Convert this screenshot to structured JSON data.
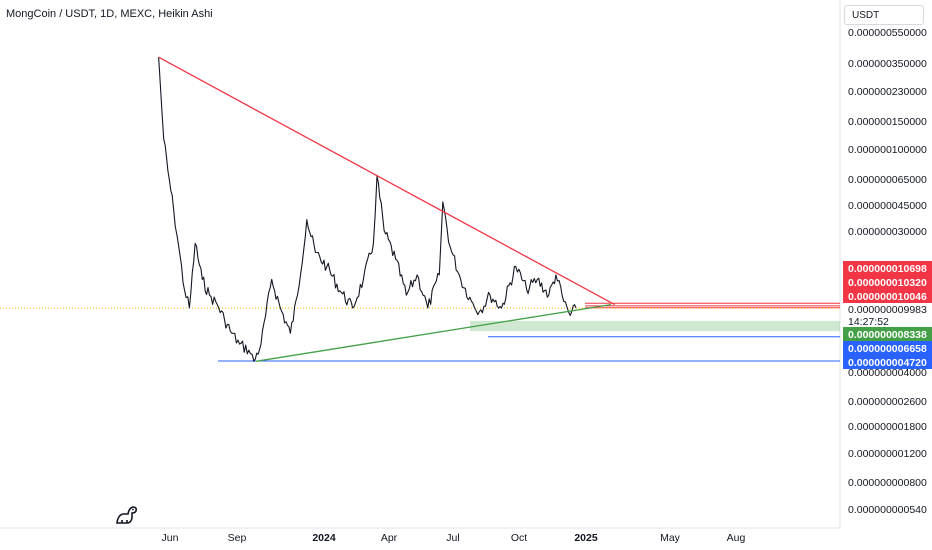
{
  "header": {
    "title": "MongCoin / USDT, 1D, MEXC, Heikin Ashi"
  },
  "price_scale": {
    "unit": "USDT",
    "labels": [
      "0.000000550000",
      "0.000000350000",
      "0.000000230000",
      "0.000000150000",
      "0.000000100000",
      "0.000000065000",
      "0.000000045000",
      "0.000000030000",
      "0.000000004000",
      "0.000000002600",
      "0.000000001800",
      "0.000000001200",
      "0.000000000800",
      "0.000000000540"
    ],
    "badges": [
      {
        "label": "0.000000010698",
        "color": "#f23645"
      },
      {
        "label": "0.000000010320",
        "color": "#f23645"
      },
      {
        "label": "0.000000010046",
        "color": "#f23645"
      },
      {
        "label": "0.000000008338",
        "color": "#43a047"
      },
      {
        "label": "0.000000006658",
        "color": "#2962ff"
      },
      {
        "label": "0.000000004720",
        "color": "#2962ff"
      }
    ],
    "last_price": "0.000000009983",
    "countdown": "14:27:52"
  },
  "time_scale": {
    "labels": [
      {
        "text": "Jun",
        "bold": false
      },
      {
        "text": "Sep",
        "bold": false
      },
      {
        "text": "2024",
        "bold": true
      },
      {
        "text": "Apr",
        "bold": false
      },
      {
        "text": "Jul",
        "bold": false
      },
      {
        "text": "Oct",
        "bold": false
      },
      {
        "text": "2025",
        "bold": true
      },
      {
        "text": "May",
        "bold": false
      },
      {
        "text": "Aug",
        "bold": false
      }
    ]
  },
  "chart_data": {
    "type": "line",
    "title": "MongCoin / USDT, 1D, MEXC, Heikin Ashi",
    "scale": "log",
    "series": [
      {
        "values": [
          [
            "2023-05-15",
            3.5e-07
          ],
          [
            "2023-05-17",
            2.5e-07
          ],
          [
            "2023-05-22",
            1.1e-07
          ],
          [
            "2023-05-28",
            7e-08
          ],
          [
            "2023-06-05",
            4e-08
          ],
          [
            "2023-06-12",
            2.4e-08
          ],
          [
            "2023-06-20",
            1.3e-08
          ],
          [
            "2023-06-27",
            1e-08
          ],
          [
            "2023-07-05",
            2.5e-08
          ],
          [
            "2023-07-15",
            1.5e-08
          ],
          [
            "2023-07-25",
            1.2e-08
          ],
          [
            "2023-08-05",
            1.05e-08
          ],
          [
            "2023-08-15",
            8.5e-09
          ],
          [
            "2023-08-25",
            7e-09
          ],
          [
            "2023-09-05",
            6e-09
          ],
          [
            "2023-09-18",
            5.5e-09
          ],
          [
            "2023-09-25",
            4.7e-09
          ],
          [
            "2023-10-05",
            6e-09
          ],
          [
            "2023-10-20",
            1.5e-08
          ],
          [
            "2023-11-01",
            1e-08
          ],
          [
            "2023-11-15",
            7e-09
          ],
          [
            "2023-11-25",
            1.2e-08
          ],
          [
            "2023-12-08",
            3.5e-08
          ],
          [
            "2023-12-20",
            2.2e-08
          ],
          [
            "2024-01-05",
            1.8e-08
          ],
          [
            "2024-01-25",
            1.25e-08
          ],
          [
            "2024-02-10",
            1e-08
          ],
          [
            "2024-02-25",
            1.5e-08
          ],
          [
            "2024-03-10",
            2.5e-08
          ],
          [
            "2024-03-15",
            6.5e-08
          ],
          [
            "2024-03-25",
            3e-08
          ],
          [
            "2024-04-10",
            2e-08
          ],
          [
            "2024-04-25",
            1.2e-08
          ],
          [
            "2024-05-10",
            1.6e-08
          ],
          [
            "2024-05-25",
            1e-08
          ],
          [
            "2024-06-10",
            1.6e-08
          ],
          [
            "2024-06-15",
            4.5e-08
          ],
          [
            "2024-06-25",
            2.4e-08
          ],
          [
            "2024-07-10",
            1.5e-08
          ],
          [
            "2024-07-25",
            1.1e-08
          ],
          [
            "2024-08-05",
            9.5e-09
          ],
          [
            "2024-08-20",
            1.2e-08
          ],
          [
            "2024-09-05",
            1e-08
          ],
          [
            "2024-09-25",
            1.8e-08
          ],
          [
            "2024-10-10",
            1.3e-08
          ],
          [
            "2024-10-25",
            1.5e-08
          ],
          [
            "2024-11-10",
            1.2e-08
          ],
          [
            "2024-11-20",
            1.6e-08
          ],
          [
            "2024-12-01",
            1.1e-08
          ],
          [
            "2024-12-10",
            9e-09
          ],
          [
            "2024-12-18",
            1e-08
          ]
        ]
      }
    ],
    "trendlines": [
      {
        "color": "#f23645",
        "from": [
          "2023-05-15",
          3.5e-07
        ],
        "to": [
          "2025-02-10",
          1.05e-08
        ]
      },
      {
        "color": "#43a047",
        "from": [
          "2023-09-28",
          4.7e-09
        ],
        "to": [
          "2025-02-05",
          1.05e-08
        ]
      }
    ],
    "horizontal_levels": [
      {
        "color": "#2962ff",
        "value": 4.72e-09
      },
      {
        "color": "#2962ff",
        "value": 6.658e-09
      },
      {
        "color": "#f23645",
        "value": 1.0698e-08
      },
      {
        "color": "#f23645",
        "value": 1.032e-08
      },
      {
        "color": "#f23645",
        "value": 1.0046e-08
      }
    ],
    "zone": {
      "color": "#43a047",
      "from": 7.2e-09,
      "to": 8.338e-09
    },
    "last_price": 9.983e-09
  }
}
